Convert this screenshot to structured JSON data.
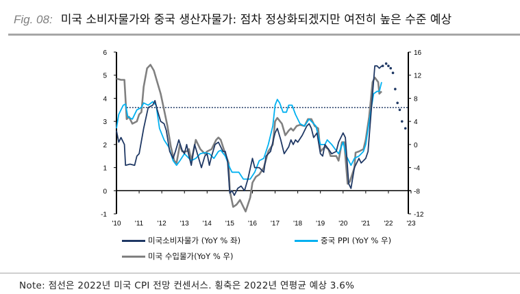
{
  "title": {
    "fig": "Fig. 08:",
    "text": "미국 소비자물가와 중국 생산자물가: 점차 정상화되겠지만 여전히 높은 수준 예상"
  },
  "note": "Note: 점선은 2022년 미국 CPI 전망 컨센서스. 횡축은 2022년 연평균 예상 3.6%",
  "colors": {
    "cpi": "#1f3864",
    "ppi": "#00b0f0",
    "import": "#808080",
    "reference": "#1f3864"
  },
  "chart_data": {
    "type": "line",
    "x_tick_labels": [
      "'10",
      "'11",
      "'12",
      "'13",
      "'14",
      "'15",
      "'16",
      "'17",
      "'18",
      "'19",
      "'20",
      "'21",
      "'22",
      "'23"
    ],
    "xlim": [
      2010,
      2023
    ],
    "y_left": {
      "lim": [
        -1,
        6
      ],
      "ticks": [
        "-1",
        "0",
        "1",
        "2",
        "3",
        "4",
        "5",
        "6"
      ]
    },
    "y_right": {
      "lim": [
        -12,
        16
      ],
      "ticks": [
        "-12",
        "-8",
        "-4",
        "0",
        "4",
        "8",
        "12",
        "16"
      ]
    },
    "reference_line": {
      "axis": "left",
      "value": 3.6,
      "style": "dotted"
    },
    "legend": [
      {
        "label": "미국소비자물가 (YoY % 좌)",
        "series": "cpi"
      },
      {
        "label": "중국 PPI (YoY % 우)",
        "series": "ppi"
      },
      {
        "label": "미국 수입물가(YoY % 우)",
        "series": "import"
      }
    ],
    "series": [
      {
        "id": "cpi",
        "name": "미국소비자물가 (YoY % 좌)",
        "axis": "left",
        "points": [
          [
            2010,
            2.6
          ],
          [
            2010.1,
            2.1
          ],
          [
            2010.2,
            2.3
          ],
          [
            2010.35,
            2.0
          ],
          [
            2010.4,
            1.1
          ],
          [
            2010.6,
            1.15
          ],
          [
            2010.8,
            1.1
          ],
          [
            2010.9,
            1.5
          ],
          [
            2011,
            1.6
          ],
          [
            2011.2,
            2.7
          ],
          [
            2011.4,
            3.6
          ],
          [
            2011.6,
            3.7
          ],
          [
            2011.7,
            3.9
          ],
          [
            2011.8,
            3.5
          ],
          [
            2011.95,
            3.0
          ],
          [
            2012.1,
            2.9
          ],
          [
            2012.2,
            2.6
          ],
          [
            2012.35,
            1.7
          ],
          [
            2012.5,
            1.4
          ],
          [
            2012.6,
            1.7
          ],
          [
            2012.75,
            2.2
          ],
          [
            2012.9,
            1.75
          ],
          [
            2013,
            1.6
          ],
          [
            2013.1,
            2.0
          ],
          [
            2013.2,
            1.5
          ],
          [
            2013.3,
            1.1
          ],
          [
            2013.45,
            2.0
          ],
          [
            2013.6,
            1.5
          ],
          [
            2013.75,
            1.0
          ],
          [
            2013.9,
            1.5
          ],
          [
            2014,
            1.6
          ],
          [
            2014.1,
            1.1
          ],
          [
            2014.2,
            1.5
          ],
          [
            2014.35,
            2.0
          ],
          [
            2014.5,
            2.1
          ],
          [
            2014.7,
            1.7
          ],
          [
            2014.8,
            1.7
          ],
          [
            2014.9,
            1.3
          ],
          [
            2015,
            -0.1
          ],
          [
            2015.1,
            0.0
          ],
          [
            2015.2,
            -0.2
          ],
          [
            2015.35,
            0.1
          ],
          [
            2015.5,
            0.2
          ],
          [
            2015.65,
            0.0
          ],
          [
            2015.8,
            0.5
          ],
          [
            2016,
            1.4
          ],
          [
            2016.1,
            1.0
          ],
          [
            2016.3,
            1.0
          ],
          [
            2016.5,
            0.8
          ],
          [
            2016.6,
            1.5
          ],
          [
            2016.8,
            1.7
          ],
          [
            2017,
            2.5
          ],
          [
            2017.1,
            2.7
          ],
          [
            2017.25,
            2.2
          ],
          [
            2017.4,
            1.6
          ],
          [
            2017.6,
            1.9
          ],
          [
            2017.7,
            2.2
          ],
          [
            2017.8,
            2.0
          ],
          [
            2017.9,
            2.2
          ],
          [
            2018,
            2.1
          ],
          [
            2018.2,
            2.4
          ],
          [
            2018.4,
            2.8
          ],
          [
            2018.5,
            2.9
          ],
          [
            2018.6,
            2.7
          ],
          [
            2018.7,
            2.3
          ],
          [
            2018.85,
            2.5
          ],
          [
            2019,
            1.6
          ],
          [
            2019.1,
            1.5
          ],
          [
            2019.2,
            2.0
          ],
          [
            2019.35,
            1.8
          ],
          [
            2019.5,
            1.6
          ],
          [
            2019.7,
            1.7
          ],
          [
            2019.8,
            2.1
          ],
          [
            2020,
            2.5
          ],
          [
            2020.1,
            2.3
          ],
          [
            2020.25,
            0.3
          ],
          [
            2020.35,
            0.1
          ],
          [
            2020.5,
            1.0
          ],
          [
            2020.7,
            1.4
          ],
          [
            2020.8,
            1.2
          ],
          [
            2020.9,
            1.3
          ],
          [
            2021,
            1.4
          ],
          [
            2021.1,
            1.7
          ],
          [
            2021.3,
            4.2
          ],
          [
            2021.4,
            5.4
          ],
          [
            2021.5,
            5.4
          ],
          [
            2021.6,
            5.3
          ],
          [
            2021.7,
            5.4
          ]
        ]
      },
      {
        "id": "cpi_forecast",
        "name": "",
        "axis": "left",
        "style": "dotted",
        "points": [
          [
            2021.75,
            5.4
          ],
          [
            2021.9,
            5.5
          ],
          [
            2022,
            5.4
          ],
          [
            2022.1,
            5.3
          ],
          [
            2022.2,
            5.1
          ],
          [
            2022.3,
            4.4
          ],
          [
            2022.4,
            3.8
          ],
          [
            2022.5,
            3.5
          ],
          [
            2022.6,
            3.0
          ],
          [
            2022.75,
            2.7
          ]
        ]
      },
      {
        "id": "ppi",
        "name": "중국 PPI (YoY % 우)",
        "axis": "right",
        "points": [
          [
            2010,
            2.8
          ],
          [
            2010.1,
            5.2
          ],
          [
            2010.3,
            6.8
          ],
          [
            2010.4,
            7
          ],
          [
            2010.5,
            4.8
          ],
          [
            2010.7,
            4.4
          ],
          [
            2010.9,
            6
          ],
          [
            2011.1,
            6.4
          ],
          [
            2011.2,
            7.2
          ],
          [
            2011.4,
            6.8
          ],
          [
            2011.6,
            7.4
          ],
          [
            2011.75,
            6.8
          ],
          [
            2011.9,
            2.8
          ],
          [
            2012.1,
            0.8
          ],
          [
            2012.3,
            -0.4
          ],
          [
            2012.5,
            -2.8
          ],
          [
            2012.65,
            -3.6
          ],
          [
            2012.8,
            -2.8
          ],
          [
            2013,
            -1.6
          ],
          [
            2013.3,
            -2.8
          ],
          [
            2013.5,
            -2.4
          ],
          [
            2013.7,
            -1.6
          ],
          [
            2013.9,
            -1.4
          ],
          [
            2014.1,
            -1.6
          ],
          [
            2014.3,
            -2.4
          ],
          [
            2014.5,
            -1.2
          ],
          [
            2014.6,
            -1
          ],
          [
            2014.8,
            -2
          ],
          [
            2015,
            -4
          ],
          [
            2015.1,
            -4.8
          ],
          [
            2015.4,
            -4.8
          ],
          [
            2015.6,
            -6
          ],
          [
            2015.9,
            -6
          ],
          [
            2016.1,
            -4.8
          ],
          [
            2016.3,
            -2.8
          ],
          [
            2016.5,
            -2.4
          ],
          [
            2016.7,
            0
          ],
          [
            2016.9,
            3.2
          ],
          [
            2017,
            6.8
          ],
          [
            2017.1,
            7.8
          ],
          [
            2017.2,
            7.2
          ],
          [
            2017.35,
            5.6
          ],
          [
            2017.5,
            5.6
          ],
          [
            2017.6,
            6.8
          ],
          [
            2017.75,
            6.8
          ],
          [
            2017.9,
            5.2
          ],
          [
            2018.1,
            3.6
          ],
          [
            2018.3,
            3.2
          ],
          [
            2018.5,
            4.4
          ],
          [
            2018.6,
            4
          ],
          [
            2018.8,
            3.2
          ],
          [
            2019,
            0
          ],
          [
            2019.2,
            0
          ],
          [
            2019.3,
            0.8
          ],
          [
            2019.5,
            0
          ],
          [
            2019.8,
            -1.6
          ],
          [
            2020,
            0.4
          ],
          [
            2020.15,
            -2
          ],
          [
            2020.35,
            -3.6
          ],
          [
            2020.5,
            -2.4
          ],
          [
            2020.7,
            -2
          ],
          [
            2020.9,
            -1.2
          ],
          [
            2021,
            0
          ],
          [
            2021.2,
            5.2
          ],
          [
            2021.35,
            8.8
          ],
          [
            2021.5,
            9.2
          ],
          [
            2021.6,
            9.2
          ],
          [
            2021.7,
            10.8
          ]
        ]
      },
      {
        "id": "import",
        "name": "미국 수입물가(YoY % 우)",
        "axis": "right",
        "points": [
          [
            2010,
            11.4
          ],
          [
            2010.2,
            11.2
          ],
          [
            2010.35,
            11.2
          ],
          [
            2010.45,
            4.4
          ],
          [
            2010.55,
            4.8
          ],
          [
            2010.7,
            3.6
          ],
          [
            2010.9,
            4
          ],
          [
            2011,
            5.2
          ],
          [
            2011.1,
            5.6
          ],
          [
            2011.2,
            10
          ],
          [
            2011.35,
            13.2
          ],
          [
            2011.5,
            13.8
          ],
          [
            2011.65,
            12.8
          ],
          [
            2011.8,
            10.8
          ],
          [
            2011.95,
            8.8
          ],
          [
            2012.1,
            6
          ],
          [
            2012.25,
            3.2
          ],
          [
            2012.4,
            -0.4
          ],
          [
            2012.55,
            -2.8
          ],
          [
            2012.65,
            -3.2
          ],
          [
            2012.8,
            0
          ],
          [
            2012.9,
            -1.2
          ],
          [
            2013.1,
            -1.2
          ],
          [
            2013.2,
            -0.8
          ],
          [
            2013.3,
            -2.8
          ],
          [
            2013.5,
            0.8
          ],
          [
            2013.7,
            -0.8
          ],
          [
            2013.9,
            -1.6
          ],
          [
            2014,
            -1.2
          ],
          [
            2014.2,
            -0.8
          ],
          [
            2014.4,
            0.8
          ],
          [
            2014.5,
            1.2
          ],
          [
            2014.6,
            0.8
          ],
          [
            2014.8,
            -1.6
          ],
          [
            2014.95,
            -3.2
          ],
          [
            2015,
            -8
          ],
          [
            2015.15,
            -10.8
          ],
          [
            2015.3,
            -10.4
          ],
          [
            2015.45,
            -9.6
          ],
          [
            2015.6,
            -10.8
          ],
          [
            2015.7,
            -11.6
          ],
          [
            2015.9,
            -9.2
          ],
          [
            2016,
            -6.6
          ],
          [
            2016.15,
            -5.6
          ],
          [
            2016.3,
            -5.2
          ],
          [
            2016.5,
            -4
          ],
          [
            2016.7,
            -1.2
          ],
          [
            2016.9,
            0
          ],
          [
            2017,
            4
          ],
          [
            2017.1,
            4.6
          ],
          [
            2017.3,
            3.6
          ],
          [
            2017.45,
            1.6
          ],
          [
            2017.6,
            2.4
          ],
          [
            2017.7,
            2.8
          ],
          [
            2017.8,
            2.4
          ],
          [
            2017.95,
            3.2
          ],
          [
            2018.1,
            3.4
          ],
          [
            2018.3,
            3.2
          ],
          [
            2018.45,
            4.4
          ],
          [
            2018.6,
            4.4
          ],
          [
            2018.75,
            3.2
          ],
          [
            2018.9,
            2.8
          ],
          [
            2019,
            -1.2
          ],
          [
            2019.2,
            -0.4
          ],
          [
            2019.35,
            -0.8
          ],
          [
            2019.45,
            -2
          ],
          [
            2019.7,
            -2
          ],
          [
            2019.8,
            -2.8
          ],
          [
            2019.95,
            0.4
          ],
          [
            2020.05,
            0.4
          ],
          [
            2020.2,
            -6.8
          ],
          [
            2020.3,
            -6.4
          ],
          [
            2020.5,
            -4
          ],
          [
            2020.55,
            -1.4
          ],
          [
            2020.7,
            -1.2
          ],
          [
            2020.9,
            -0.8
          ],
          [
            2021,
            0.8
          ],
          [
            2021.15,
            4.8
          ],
          [
            2021.3,
            10.8
          ],
          [
            2021.4,
            11.6
          ],
          [
            2021.55,
            10.8
          ],
          [
            2021.6,
            8.8
          ],
          [
            2021.7,
            9.2
          ]
        ]
      }
    ]
  }
}
